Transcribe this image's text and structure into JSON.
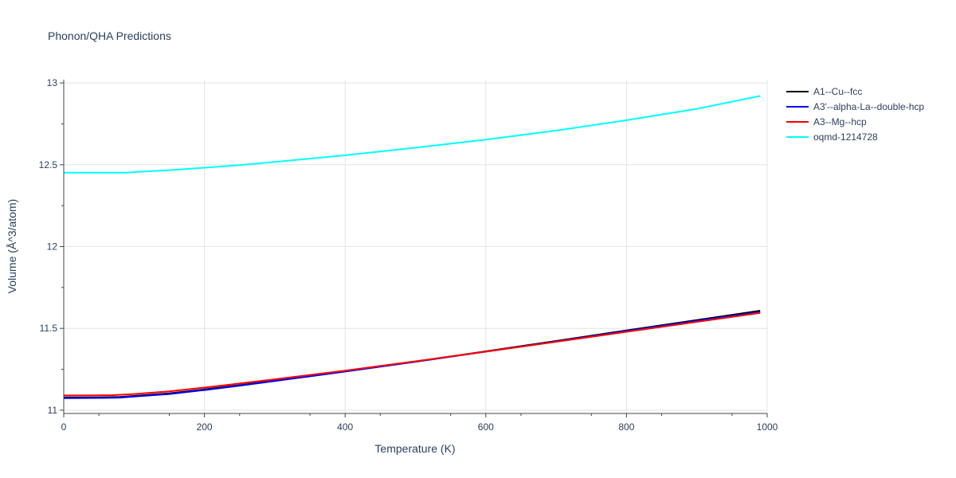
{
  "chart_data": {
    "type": "line",
    "title": "Phonon/QHA Predictions",
    "xlabel": "Temperature (K)",
    "ylabel": "Volume (Å^3/atom)",
    "xlim": [
      0,
      1000
    ],
    "ylim": [
      10.98,
      13.02
    ],
    "xticks": [
      0,
      200,
      400,
      600,
      800,
      1000
    ],
    "xtick_labels": [
      "0",
      "200",
      "400",
      "600",
      "800",
      "1000"
    ],
    "yticks": [
      11,
      11.5,
      12,
      12.5,
      13
    ],
    "ytick_labels": [
      "11",
      "11.5",
      "12",
      "12.5",
      "13"
    ],
    "grid": true,
    "legend_position": "right",
    "series": [
      {
        "name": "A1--Cu--fcc",
        "color": "#000000",
        "x": [
          0,
          50,
          80,
          100,
          150,
          200,
          250,
          300,
          400,
          500,
          600,
          700,
          800,
          900,
          990
        ],
        "y": [
          11.078,
          11.079,
          11.081,
          11.087,
          11.103,
          11.127,
          11.153,
          11.18,
          11.237,
          11.297,
          11.36,
          11.423,
          11.488,
          11.551,
          11.608
        ]
      },
      {
        "name": "A3'--alpha-La--double-hcp",
        "color": "#0000ff",
        "x": [
          0,
          50,
          80,
          100,
          150,
          200,
          250,
          300,
          400,
          500,
          600,
          700,
          800,
          900,
          990
        ],
        "y": [
          11.074,
          11.075,
          11.077,
          11.083,
          11.099,
          11.123,
          11.15,
          11.178,
          11.236,
          11.296,
          11.358,
          11.42,
          11.484,
          11.546,
          11.6
        ]
      },
      {
        "name": "A3--Mg--hcp",
        "color": "#ff0000",
        "x": [
          0,
          50,
          70,
          100,
          150,
          200,
          250,
          300,
          400,
          500,
          600,
          700,
          800,
          900,
          990
        ],
        "y": [
          11.09,
          11.091,
          11.092,
          11.099,
          11.115,
          11.138,
          11.163,
          11.189,
          11.242,
          11.299,
          11.358,
          11.418,
          11.479,
          11.54,
          11.595
        ]
      },
      {
        "name": "oqmd-1214728",
        "color": "#00ffff",
        "x": [
          0,
          50,
          90,
          100,
          150,
          200,
          250,
          300,
          400,
          500,
          600,
          700,
          800,
          900,
          990
        ],
        "y": [
          12.452,
          12.452,
          12.452,
          12.455,
          12.467,
          12.482,
          12.498,
          12.517,
          12.558,
          12.604,
          12.654,
          12.709,
          12.772,
          12.842,
          12.92
        ]
      }
    ]
  }
}
